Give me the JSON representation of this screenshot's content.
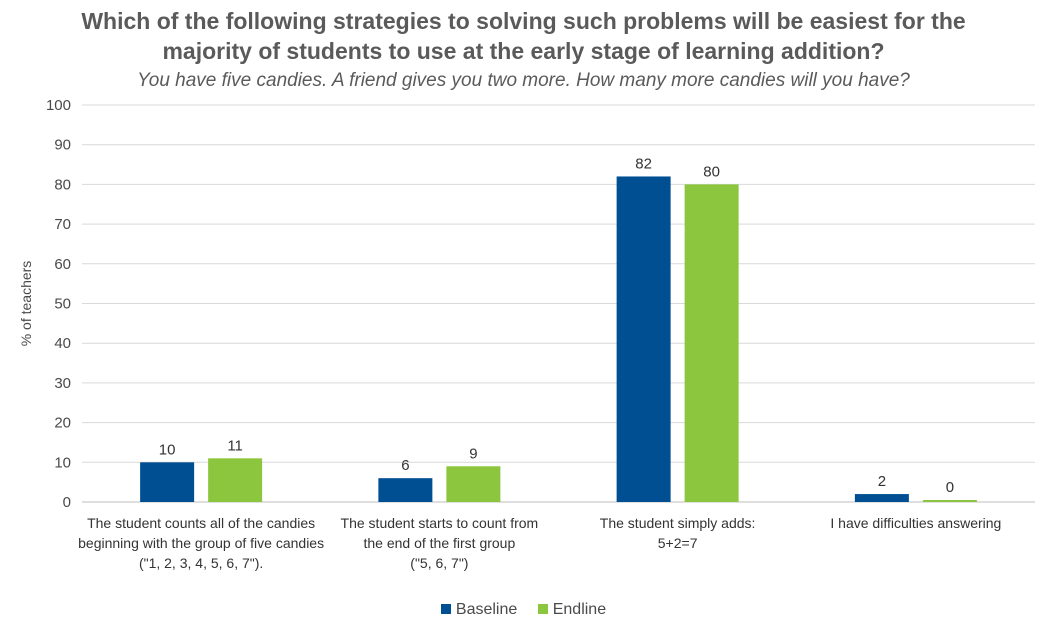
{
  "chart_data": {
    "type": "bar",
    "title": "Which of the following strategies to solving such problems will be easiest for the majority of students to use at the early stage of learning addition?",
    "subtitle": "You have five candies. A friend gives you two more. How many more candies will you have?",
    "ylabel": "% of teachers",
    "xlabel": "",
    "ylim": [
      0,
      100
    ],
    "yticks": [
      0,
      10,
      20,
      30,
      40,
      50,
      60,
      70,
      80,
      90,
      100
    ],
    "grid": true,
    "legend_position": "bottom",
    "categories": [
      [
        "The student counts all of the candies",
        "beginning with the group of five candies",
        "(\"1, 2, 3, 4, 5, 6, 7\")."
      ],
      [
        "The student starts to count from",
        "the end of the first group",
        "(\"5, 6, 7\")"
      ],
      [
        "The student simply adds:",
        "5+2=7"
      ],
      [
        "I have difficulties answering"
      ]
    ],
    "series": [
      {
        "name": "Baseline",
        "color": "#004f93",
        "values": [
          10,
          6,
          82,
          2
        ]
      },
      {
        "name": "Endline",
        "color": "#8cc63e",
        "values": [
          11,
          9,
          80,
          0
        ]
      }
    ]
  }
}
